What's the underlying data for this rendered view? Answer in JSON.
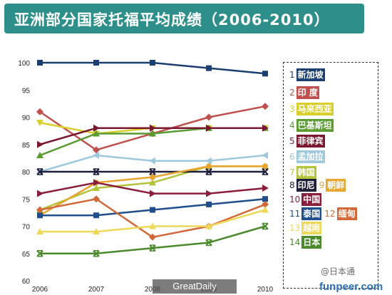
{
  "title": "亚洲部分国家托福平均成绩（2006-2010）",
  "watermarks": {
    "greatdaily": "GreatDaily",
    "funpeer": "funpeer.com",
    "author": "@日本通"
  },
  "chart_data": {
    "type": "line",
    "title": "亚洲部分国家托福平均成绩（2006-2010）",
    "xlabel": "",
    "ylabel": "",
    "x": [
      2006,
      2007,
      2008,
      2009,
      2010
    ],
    "x_tick_labels": [
      "2006",
      "2007",
      "2008",
      "2009",
      "2010"
    ],
    "ylim": [
      60,
      100
    ],
    "y_ticks": [
      60,
      65,
      70,
      75,
      80,
      85,
      90,
      95,
      100
    ],
    "grid": false,
    "legend_position": "right",
    "series": [
      {
        "name": "新加坡",
        "legend_text": "新加坡",
        "num": "1",
        "color": "#1b3f6e",
        "marker": "square",
        "values": [
          100,
          100,
          100,
          99,
          98
        ]
      },
      {
        "name": "印度",
        "legend_text": "印 度",
        "num": "2",
        "color": "#c0504d",
        "marker": "diamond",
        "values": [
          91,
          84,
          87,
          90,
          92
        ]
      },
      {
        "name": "马来西亚",
        "legend_text": "马来西亚",
        "num": "3",
        "color": "#d8cf2a",
        "marker": "triangle-down",
        "values": [
          89,
          87,
          88,
          88,
          88
        ]
      },
      {
        "name": "巴基斯坦",
        "legend_text": "巴基斯坦",
        "num": "4",
        "color": "#5a9b32",
        "marker": "triangle",
        "values": [
          83,
          87,
          87,
          88,
          88
        ]
      },
      {
        "name": "菲律宾",
        "legend_text": "菲律宾",
        "num": "5",
        "color": "#7a1830",
        "marker": "triangle-right",
        "values": [
          85,
          88,
          88,
          88,
          88
        ]
      },
      {
        "name": "孟加拉",
        "legend_text": "孟加拉",
        "num": "6",
        "color": "#9ec9dc",
        "marker": "triangle-left",
        "values": [
          80,
          83,
          82,
          82,
          83
        ]
      },
      {
        "name": "韩国",
        "legend_text": "韩国",
        "num": "7",
        "color": "#b5c33b",
        "marker": "triangle-up",
        "values": [
          73,
          77,
          78,
          81,
          81
        ]
      },
      {
        "name": "印尼",
        "legend_text": "印尼",
        "num": "8",
        "color": "#1f1f3a",
        "marker": "x",
        "values": [
          80,
          80,
          80,
          80,
          80
        ]
      },
      {
        "name": "朝鲜",
        "legend_text": "朝鲜",
        "num": "9",
        "color": "#e8a630",
        "marker": "circle",
        "values": [
          72,
          78,
          79,
          81,
          81
        ]
      },
      {
        "name": "中国",
        "legend_text": "中国",
        "num": "10",
        "color": "#8a1e3c",
        "marker": "triangle-right",
        "values": [
          76,
          78,
          76,
          76,
          77
        ]
      },
      {
        "name": "泰国",
        "legend_text": "泰国",
        "num": "11",
        "color": "#1f4e8a",
        "marker": "square",
        "values": [
          72,
          72,
          73,
          74,
          75
        ]
      },
      {
        "name": "缅甸",
        "legend_text": "缅甸",
        "num": "12",
        "color": "#d2683a",
        "marker": "diamond",
        "values": [
          73,
          75,
          68,
          70,
          74
        ]
      },
      {
        "name": "越南",
        "legend_text": "越南",
        "num": "13",
        "color": "#eed85a",
        "marker": "triangle",
        "values": [
          69,
          69,
          70,
          70,
          73
        ]
      },
      {
        "name": "日本",
        "legend_text": "日本",
        "num": "14",
        "color": "#4a8a2c",
        "marker": "x",
        "values": [
          65,
          65,
          66,
          67,
          70
        ]
      }
    ]
  }
}
